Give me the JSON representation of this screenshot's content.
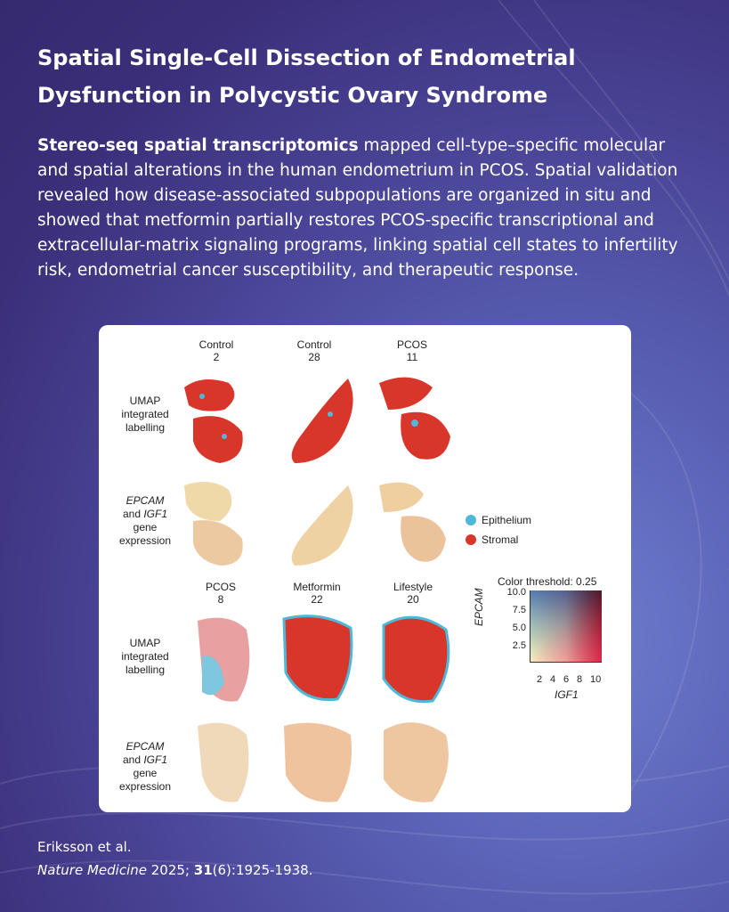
{
  "title": "Spatial Single-Cell Dissection of Endometrial Dysfunction in Polycystic Ovary Syndrome",
  "summary": {
    "lead_bold": "Stereo-seq spatial transcriptomics",
    "rest": " mapped cell-type–specific molecular and spatial alterations in the human endometrium in PCOS. Spatial validation revealed how disease-associated subpopulations are organized in situ and showed that metformin partially restores PCOS-specific transcriptional and extracellular-matrix signaling programs, linking spatial cell states to infertility risk, endometrial cancer susceptibility, and therapeutic response."
  },
  "figure": {
    "top_columns": [
      {
        "group": "Control",
        "id": "2"
      },
      {
        "group": "Control",
        "id": "28"
      },
      {
        "group": "PCOS",
        "id": "11"
      }
    ],
    "bottom_columns": [
      {
        "group": "PCOS",
        "id": "8"
      },
      {
        "group": "Metformin",
        "id": "22"
      },
      {
        "group": "Lifestyle",
        "id": "20"
      }
    ],
    "row_labels": {
      "umap_line1": "UMAP",
      "umap_line2": "integrated",
      "umap_line3": "labelling",
      "expr_gene1": "EPCAM",
      "expr_and": "and",
      "expr_gene2": "IGF1",
      "expr_line3": "gene",
      "expr_line4": "expression"
    },
    "legend": [
      {
        "label": "Epithelium",
        "color": "#4db8d8"
      },
      {
        "label": "Stromal",
        "color": "#d9362b"
      }
    ],
    "colorbar": {
      "title": "Color threshold: 0.25",
      "y_label": "EPCAM",
      "x_label": "IGF1",
      "y_ticks": [
        "10.0",
        "7.5",
        "5.0",
        "2.5"
      ],
      "x_ticks": [
        "2",
        "4",
        "6",
        "8",
        "10"
      ]
    }
  },
  "citation": {
    "authors": "Eriksson et al.",
    "journal": "Nature Medicine",
    "year": "2025;",
    "volume": "31",
    "issue_pages": "(6):1925-1938."
  }
}
